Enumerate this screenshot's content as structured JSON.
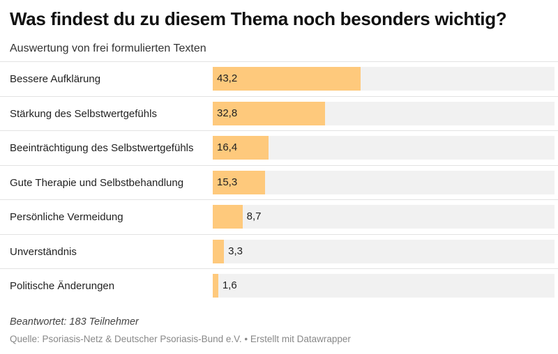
{
  "header": {
    "title": "Was findest du zu diesem Thema noch besonders wichtig?",
    "subtitle": "Auswertung von frei formulierten Texten"
  },
  "footer": {
    "note": "Beantwortet: 183 Teilnehmer",
    "source": "Quelle: Psoriasis-Netz & Deutscher Psoriasis-Bund e.V. • Erstellt mit Datawrapper"
  },
  "colors": {
    "bar": "#fec97c",
    "track": "#f1f1f1"
  },
  "chart_data": {
    "type": "bar",
    "orientation": "horizontal",
    "title": "Was findest du zu diesem Thema noch besonders wichtig?",
    "subtitle": "Auswertung von frei formulierten Texten",
    "categories": [
      "Bessere Aufklärung",
      "Stärkung des Selbstwertgefühls",
      "Beeinträchtigung des Selbstwertgefühls",
      "Gute Therapie und Selbstbehandlung",
      "Persönliche Vermeidung",
      "Unverständnis",
      "Politische Änderungen"
    ],
    "values": [
      43.2,
      32.8,
      16.4,
      15.3,
      8.7,
      3.3,
      1.6
    ],
    "value_labels": [
      "43,2",
      "32,8",
      "16,4",
      "15,3",
      "8,7",
      "3,3",
      "1,6"
    ],
    "xlim": [
      0,
      100
    ],
    "grid": false,
    "legend": "none"
  }
}
